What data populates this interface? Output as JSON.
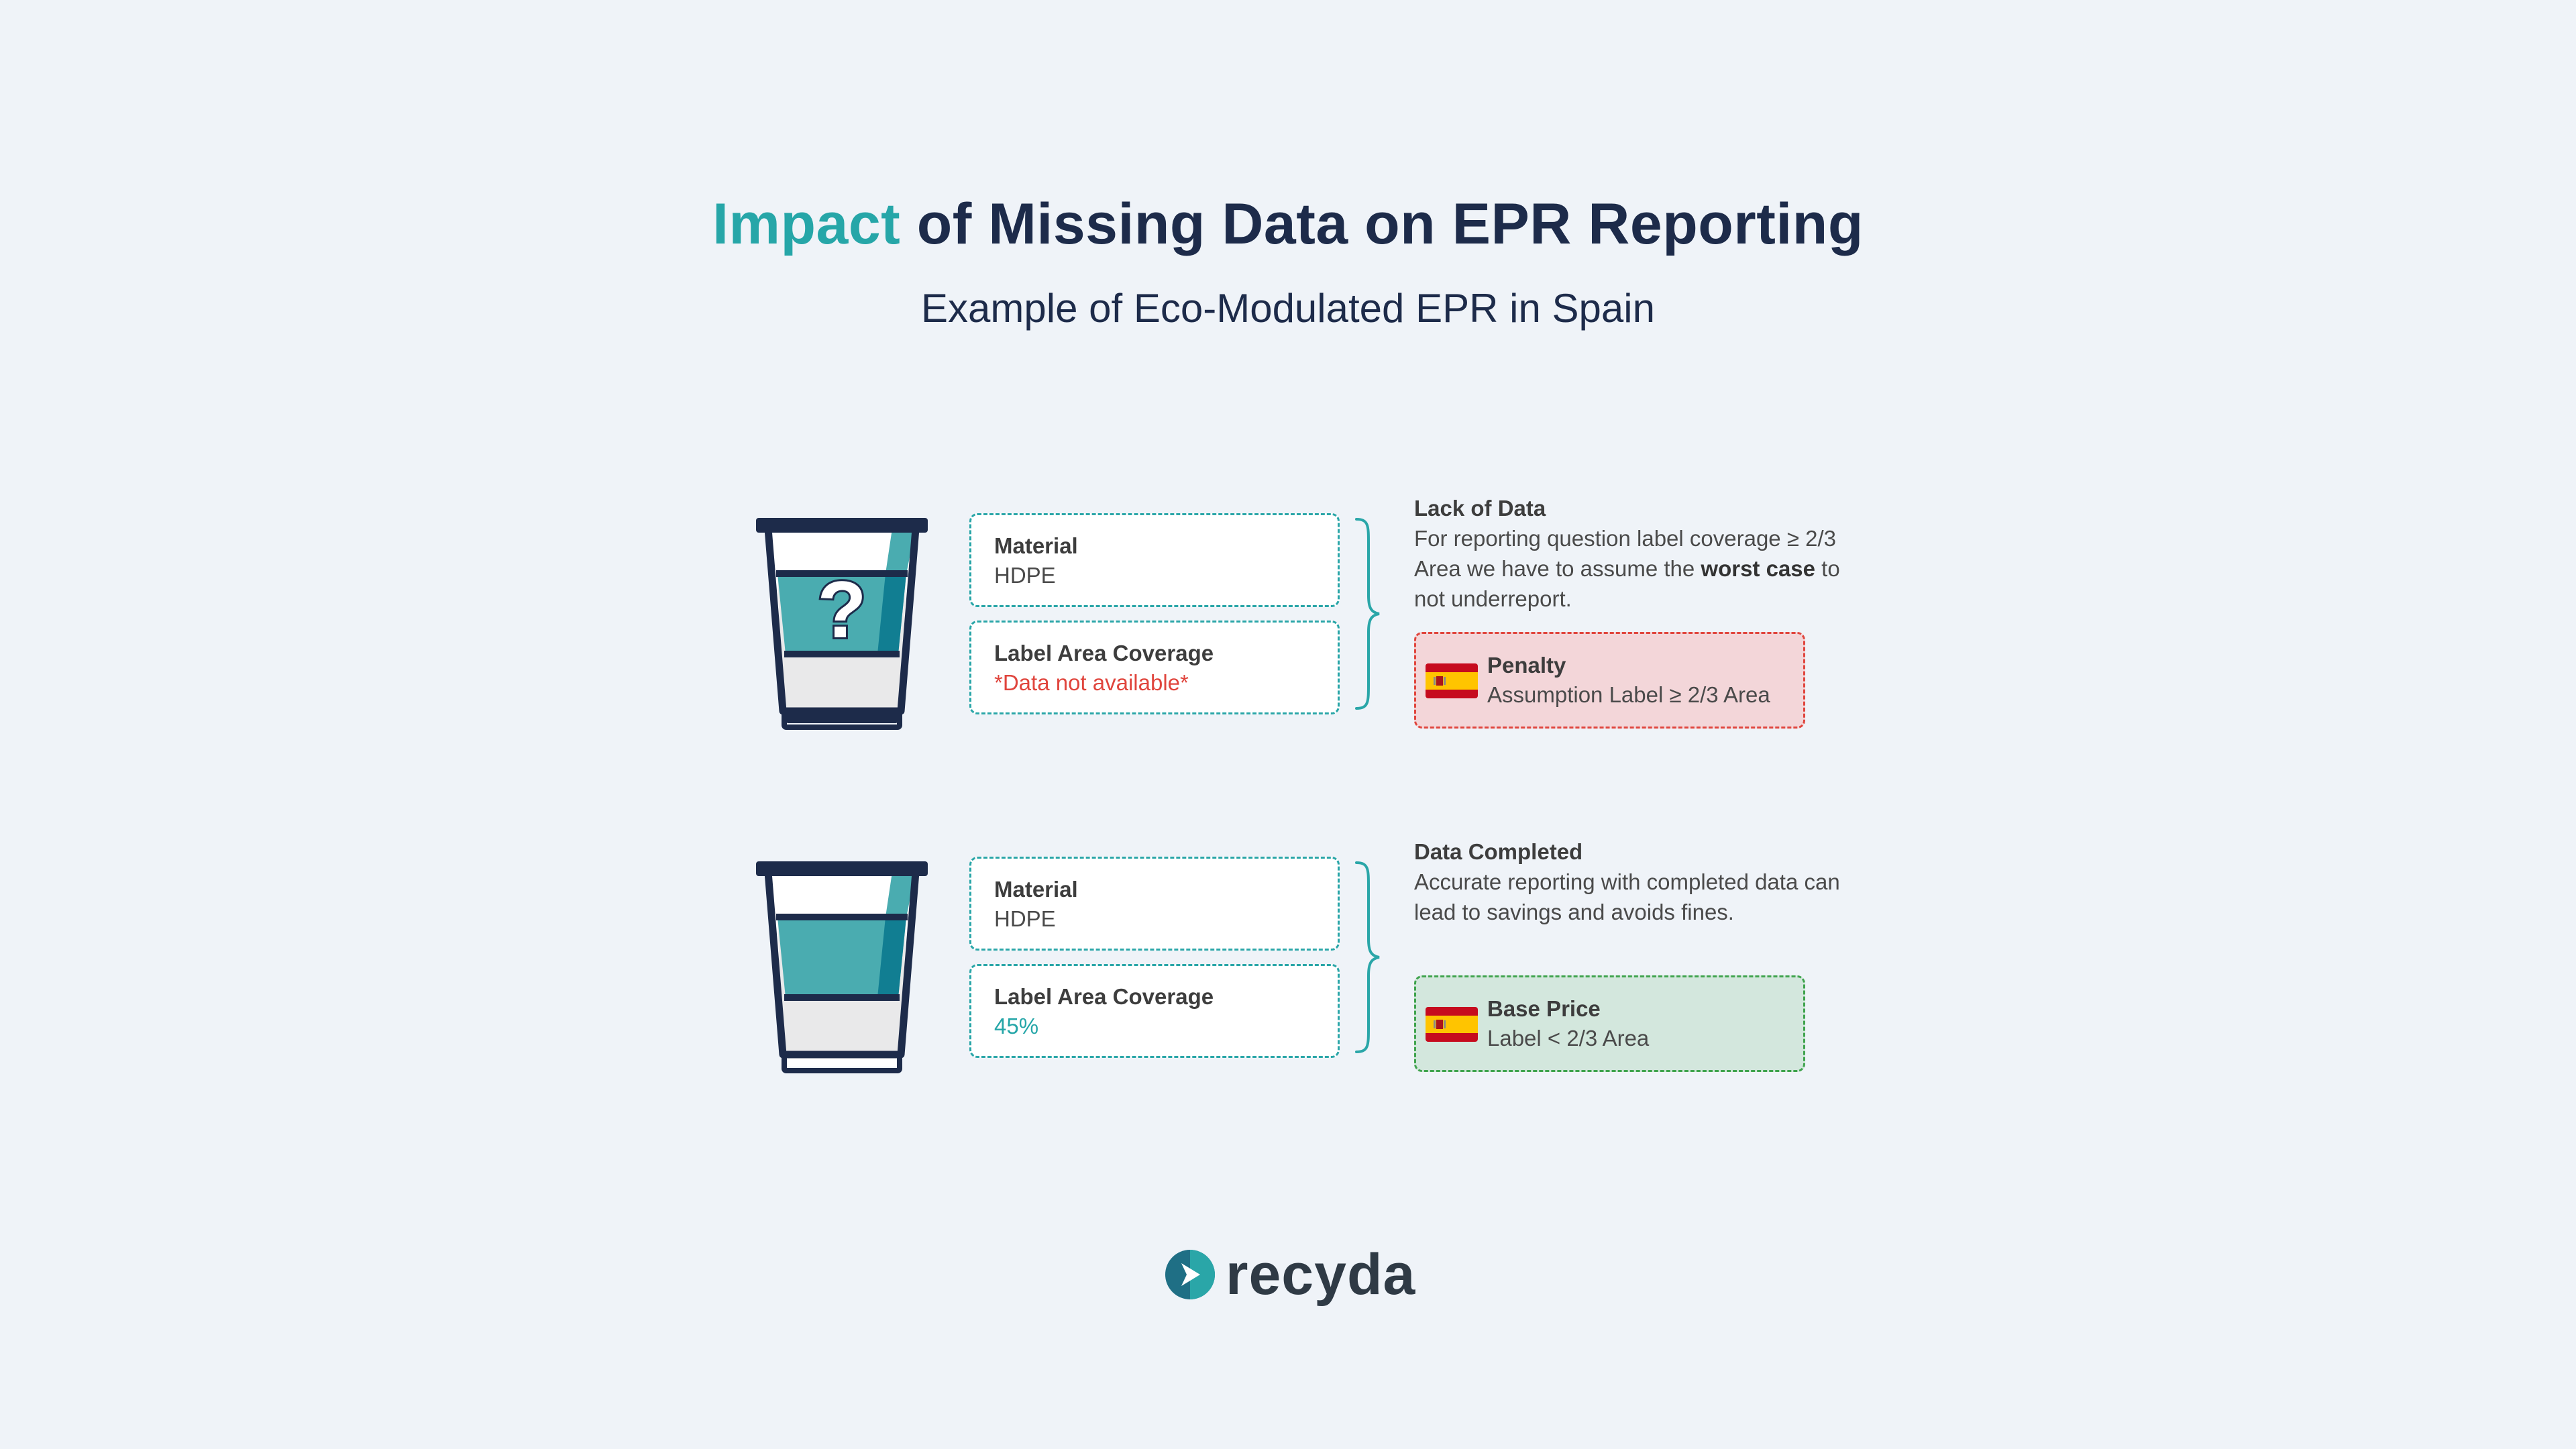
{
  "header": {
    "title_accent": "Impact",
    "title_rest": " of Missing Data on EPR Reporting",
    "subtitle": "Example of Eco-Modulated EPR in Spain"
  },
  "rows": [
    {
      "cup_icon": "cup-question-icon",
      "cup_mark": "?",
      "material_label": "Material",
      "material_value": "HDPE",
      "coverage_label": "Label Area Coverage",
      "coverage_value": "*Data not available*",
      "note_title": "Lack of Data",
      "note_text_1": "For reporting question label coverage ≥ 2/3 Area we have to assume the ",
      "note_text_bold": "worst case",
      "note_text_2": " to not underreport.",
      "result_title": "Penalty",
      "result_text": "Assumption Label ≥ 2/3 Area"
    },
    {
      "cup_icon": "cup-icon",
      "material_label": "Material",
      "material_value": "HDPE",
      "coverage_label": "Label Area Coverage",
      "coverage_value": "45%",
      "note_title": "Data Completed",
      "note_text": "Accurate reporting with completed data can lead to savings and avoids fines.",
      "result_title": "Base Price",
      "result_text": "Label < 2/3 Area"
    }
  ],
  "footer": {
    "brand": "recyda"
  },
  "colors": {
    "accent": "#26a6a8",
    "navy": "#1d2b4a",
    "missing": "#e0453d",
    "penalty_bg": "#f3d6d9",
    "base_bg": "#d3e7dd",
    "base_border": "#3fa34d"
  }
}
